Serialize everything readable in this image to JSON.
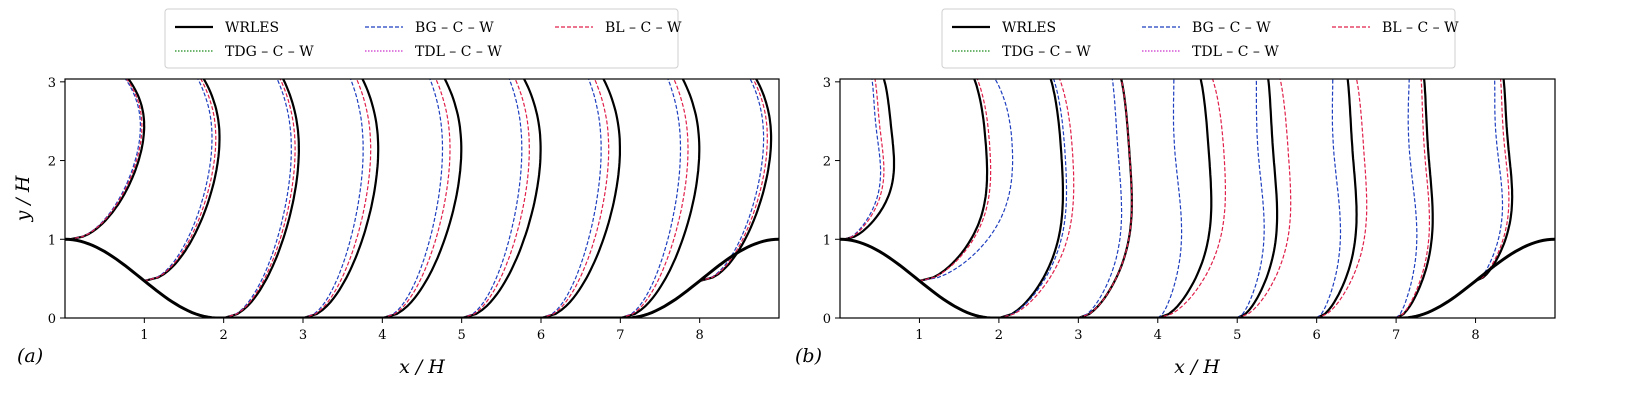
{
  "figure": {
    "panel_labels": [
      "(a)",
      "(b)"
    ]
  },
  "legend": {
    "entries": [
      {
        "label": "WRLES",
        "color": "#000000",
        "style": "solid"
      },
      {
        "label": "TDG – C – W",
        "color": "#1a8a1a",
        "style": "dotted"
      },
      {
        "label": "BG – C – W",
        "color": "#1f3fbf",
        "style": "dashed"
      },
      {
        "label": "TDL – C – W",
        "color": "#cc33cc",
        "style": "dotted"
      },
      {
        "label": "BL – C – W",
        "color": "#e0204a",
        "style": "dashed"
      }
    ]
  },
  "chart_data": [
    {
      "type": "line",
      "panel": "(a)",
      "xlabel": "x / H",
      "ylabel": "y / H",
      "xlim": [
        0,
        9
      ],
      "ylim": [
        0,
        3.036
      ],
      "xticks": [
        "1",
        "2",
        "3",
        "4",
        "5",
        "6",
        "7",
        "8"
      ],
      "yticks": [
        "0",
        "1",
        "2",
        "3"
      ],
      "profile_stations": [
        0.05,
        0.5,
        1,
        2,
        3,
        4,
        5,
        6,
        7,
        8
      ],
      "hill_crest_height": 1.0,
      "series": [
        {
          "name": "WRLES",
          "profiles_peak_x": [
            1.05,
            2.0,
            3.0,
            4.0,
            5.05,
            6.05,
            7.05,
            8.05,
            8.95
          ]
        },
        {
          "name": "BG – C – W",
          "profiles_peak_x": [
            1.0,
            1.9,
            2.9,
            3.8,
            4.8,
            5.8,
            6.8,
            7.8,
            8.85
          ]
        },
        {
          "name": "BL – C – W",
          "profiles_peak_x": [
            1.02,
            1.95,
            2.95,
            3.9,
            4.9,
            5.9,
            6.9,
            7.9,
            8.9
          ]
        }
      ]
    },
    {
      "type": "line",
      "panel": "(b)",
      "xlabel": "x / H",
      "ylabel": "",
      "xlim": [
        0,
        9
      ],
      "ylim": [
        0,
        3.036
      ],
      "xticks": [
        "1",
        "2",
        "3",
        "4",
        "5",
        "6",
        "7",
        "8"
      ],
      "yticks": [
        "0",
        "1",
        "2",
        "3"
      ],
      "profile_stations": [
        0.05,
        0.5,
        1,
        2,
        3,
        4,
        5,
        6,
        7,
        8
      ],
      "hill_crest_height": 1.0,
      "series": [
        {
          "name": "WRLES",
          "profiles_peak_x": [
            0.75,
            1.95,
            2.9,
            3.75,
            4.75,
            5.55,
            6.55,
            7.5,
            8.5
          ]
        },
        {
          "name": "BG – C – W",
          "profiles_peak_x": [
            0.55,
            2.3,
            2.95,
            3.6,
            4.3,
            5.35,
            6.3,
            7.25,
            8.35
          ]
        },
        {
          "name": "BL – C – W",
          "profiles_peak_x": [
            0.6,
            2.0,
            3.05,
            3.75,
            4.95,
            5.75,
            6.7,
            7.45,
            8.45
          ]
        }
      ]
    }
  ]
}
